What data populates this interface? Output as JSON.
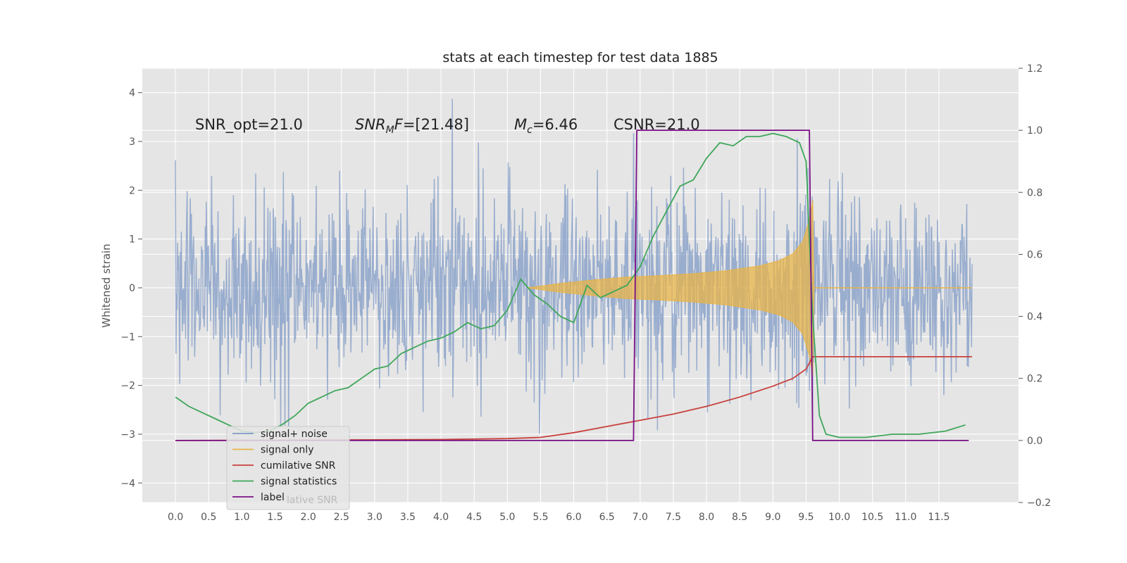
{
  "chart_data": {
    "type": "line",
    "title": "stats at each timestep for test data 1885",
    "ylabel": "Whitened strain",
    "xlabel": "",
    "xlim": [
      -0.5,
      12.7
    ],
    "ylim": [
      -4.4,
      4.5
    ],
    "y2lim": [
      -0.2,
      1.2
    ],
    "xticks": [
      "0.0",
      "0.5",
      "1.0",
      "1.5",
      "2.0",
      "2.5",
      "3.0",
      "3.5",
      "4.0",
      "4.5",
      "5.0",
      "5.5",
      "6.0",
      "6.5",
      "7.0",
      "7.5",
      "8.0",
      "8.5",
      "9.0",
      "9.5",
      "10.0",
      "10.5",
      "11.0",
      "11.5"
    ],
    "yticks": [
      "4",
      "3",
      "2",
      "1",
      "0",
      "−1",
      "−2",
      "−3",
      "−4"
    ],
    "y2ticks": [
      "1.2",
      "1.0",
      "0.8",
      "0.6",
      "0.4",
      "0.2",
      "0.0",
      "−0.2"
    ],
    "grid": true,
    "legend_position": "lower-left",
    "annotations": {
      "snr_opt": "SNR_opt=21.0",
      "snr_mf_main": "SNR",
      "snr_mf_sub": "M",
      "snr_mf_italic": "F",
      "snr_mf_rest": "=[21.48]",
      "mc_main": "M",
      "mc_sub": "c",
      "mc_rest": "=6.46",
      "csnr": "CSNR=21.0"
    },
    "legend_ghost": "lative SNR",
    "colors": {
      "plot_bg": "#e5e5e5",
      "grid": "#ffffff",
      "signal_noise": "#7f9ac6",
      "signal_only": "#e8b448",
      "cumulative_snr": "#c8413c",
      "signal_statistics": "#3fa65a",
      "label": "#7a0f85"
    },
    "series": [
      {
        "name": "signal+ noise",
        "axis": "left",
        "noise_sigma": 0.95,
        "x_range": [
          0.0,
          12.0
        ],
        "sample_count": 1500
      },
      {
        "name": "signal only",
        "axis": "left",
        "envelope_x": [
          5.3,
          5.8,
          6.3,
          6.8,
          7.3,
          7.8,
          8.3,
          8.8,
          9.1,
          9.3,
          9.45,
          9.55,
          9.6,
          9.62
        ],
        "envelope_y": [
          0.0,
          0.09,
          0.16,
          0.22,
          0.25,
          0.29,
          0.35,
          0.45,
          0.56,
          0.7,
          0.95,
          1.4,
          1.8,
          0.0
        ]
      },
      {
        "name": "cumilative SNR",
        "axis": "right",
        "x": [
          0.0,
          2.0,
          4.0,
          5.0,
          5.5,
          6.0,
          6.5,
          7.0,
          7.5,
          8.0,
          8.5,
          9.0,
          9.3,
          9.5,
          9.6,
          12.0
        ],
        "y": [
          0.0,
          0.001,
          0.003,
          0.006,
          0.01,
          0.025,
          0.045,
          0.065,
          0.085,
          0.11,
          0.14,
          0.175,
          0.2,
          0.23,
          0.27,
          0.27
        ]
      },
      {
        "name": "signal statistics",
        "axis": "right",
        "x": [
          0.0,
          0.2,
          0.4,
          0.6,
          0.8,
          1.0,
          1.2,
          1.4,
          1.6,
          1.8,
          2.0,
          2.2,
          2.4,
          2.6,
          2.8,
          3.0,
          3.2,
          3.4,
          3.6,
          3.8,
          4.0,
          4.2,
          4.4,
          4.6,
          4.8,
          5.0,
          5.2,
          5.4,
          5.6,
          5.8,
          6.0,
          6.2,
          6.4,
          6.6,
          6.8,
          7.0,
          7.2,
          7.4,
          7.6,
          7.8,
          8.0,
          8.2,
          8.4,
          8.6,
          8.8,
          9.0,
          9.2,
          9.4,
          9.5,
          9.6,
          9.7,
          9.8,
          10.0,
          10.4,
          10.8,
          11.2,
          11.6,
          11.9
        ],
        "y": [
          0.14,
          0.11,
          0.09,
          0.07,
          0.05,
          0.03,
          0.025,
          0.03,
          0.05,
          0.08,
          0.12,
          0.14,
          0.16,
          0.17,
          0.2,
          0.23,
          0.24,
          0.28,
          0.3,
          0.32,
          0.33,
          0.35,
          0.38,
          0.36,
          0.37,
          0.42,
          0.52,
          0.47,
          0.44,
          0.4,
          0.38,
          0.5,
          0.46,
          0.48,
          0.5,
          0.56,
          0.66,
          0.74,
          0.82,
          0.84,
          0.91,
          0.96,
          0.95,
          0.98,
          0.98,
          0.99,
          0.98,
          0.96,
          0.9,
          0.4,
          0.08,
          0.02,
          0.01,
          0.01,
          0.02,
          0.02,
          0.03,
          0.05
        ]
      },
      {
        "name": "label",
        "axis": "right",
        "x": [
          0.0,
          6.9,
          6.95,
          9.55,
          9.6,
          11.95
        ],
        "y": [
          0.0,
          0.0,
          1.0,
          1.0,
          0.0,
          0.0
        ]
      }
    ]
  }
}
